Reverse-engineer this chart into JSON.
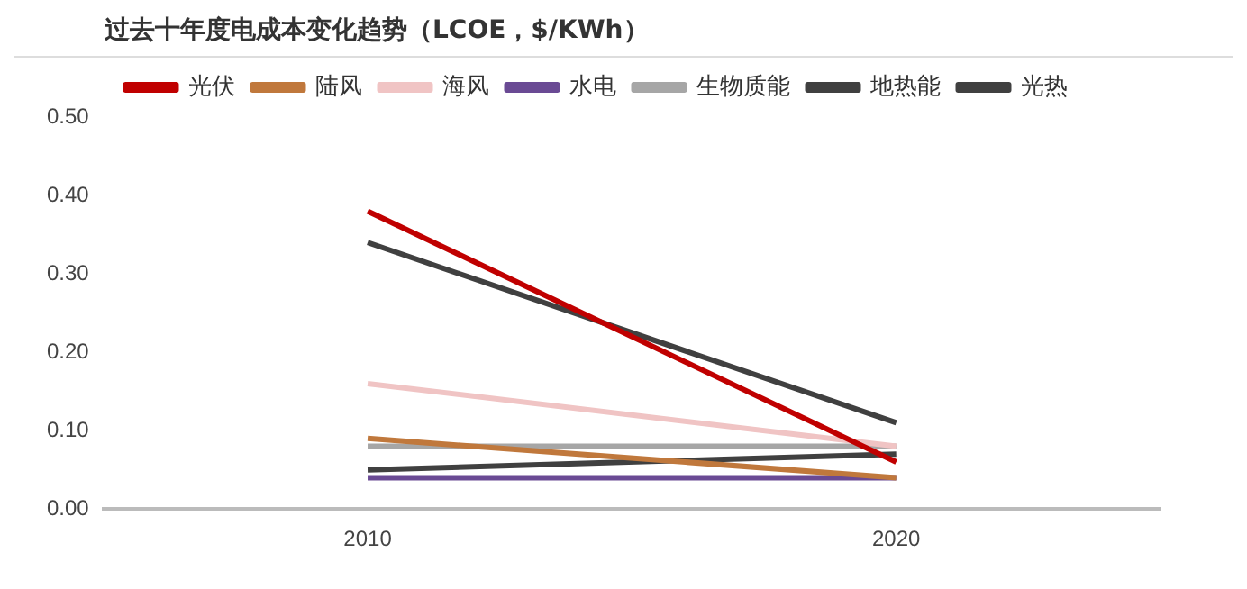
{
  "chart_data": {
    "type": "line",
    "title": "过去十年度电成本变化趋势（LCOE，$/KWh）",
    "categories": [
      "2010",
      "2020"
    ],
    "series": [
      {
        "name": "光伏",
        "color": "#c00000",
        "values": [
          0.38,
          0.06
        ]
      },
      {
        "name": "陆风",
        "color": "#c0783c",
        "values": [
          0.09,
          0.04
        ]
      },
      {
        "name": "海风",
        "color": "#f0c4c4",
        "values": [
          0.16,
          0.08
        ]
      },
      {
        "name": "水电",
        "color": "#6a4a94",
        "values": [
          0.04,
          0.04
        ]
      },
      {
        "name": "生物质能",
        "color": "#a6a6a6",
        "values": [
          0.08,
          0.08
        ]
      },
      {
        "name": "地热能",
        "color": "#404040",
        "values": [
          0.05,
          0.07
        ]
      },
      {
        "name": "光热",
        "color": "#404040",
        "values": [
          0.34,
          0.11
        ]
      }
    ],
    "ylim": [
      0,
      0.5
    ],
    "yticks": [
      {
        "value": 0,
        "label": "0.00"
      },
      {
        "value": 0.1,
        "label": "0.10"
      },
      {
        "value": 0.2,
        "label": "0.20"
      },
      {
        "value": 0.3,
        "label": "0.30"
      },
      {
        "value": 0.4,
        "label": "0.40"
      },
      {
        "value": 0.5,
        "label": "0.50"
      }
    ],
    "grid": false,
    "legend": "top",
    "marker": "none",
    "line_style": "solid"
  }
}
